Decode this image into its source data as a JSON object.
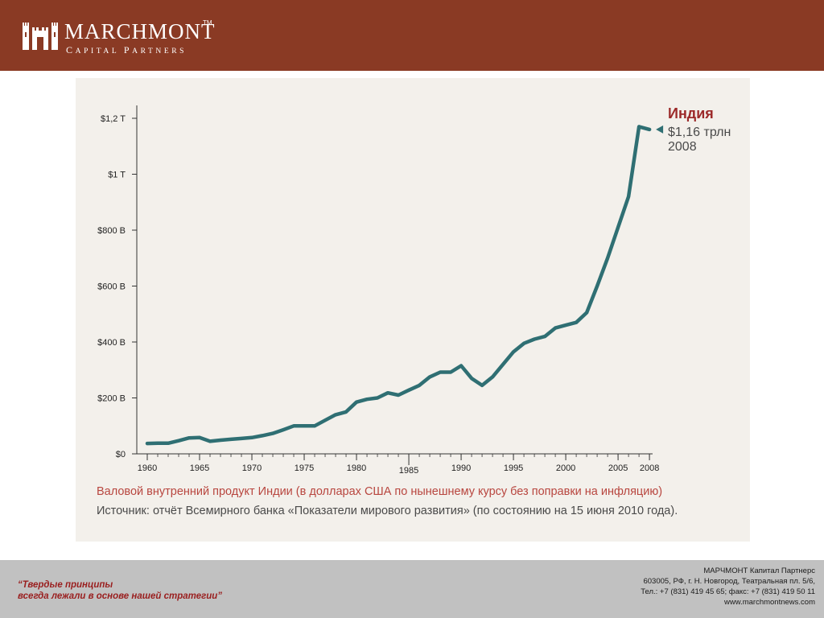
{
  "header": {
    "brand": "MARCHMONT",
    "tagline": "Capital Partners",
    "tm": "TM",
    "colors": {
      "header_bg": "#8a3a24",
      "footer_bg": "#c1c1c1"
    },
    "logo_icon": "castle-icon"
  },
  "chart_data": {
    "type": "line",
    "x_ticks": [
      "1960",
      "1965",
      "1970",
      "1975",
      "1980",
      "1985",
      "1990",
      "1995",
      "2000",
      "2005",
      "2008"
    ],
    "y_ticks": [
      "$0",
      "$200 B",
      "$400 B",
      "$600 B",
      "$800 B",
      "$1 T",
      "$1,2 T"
    ],
    "ylim": [
      0,
      1250
    ],
    "xlim": [
      1959,
      2008.3
    ],
    "grid": false,
    "series": [
      {
        "name": "Индия",
        "color": "#2f6f73",
        "x": [
          1960,
          1961,
          1962,
          1963,
          1964,
          1965,
          1966,
          1967,
          1968,
          1969,
          1970,
          1971,
          1972,
          1973,
          1974,
          1975,
          1976,
          1977,
          1978,
          1979,
          1980,
          1981,
          1982,
          1983,
          1984,
          1985,
          1986,
          1987,
          1988,
          1989,
          1990,
          1991,
          1992,
          1993,
          1994,
          1995,
          1996,
          1997,
          1998,
          1999,
          2000,
          2001,
          2002,
          2003,
          2004,
          2005,
          2006,
          2007,
          2008
        ],
        "values": [
          37,
          38,
          38,
          47,
          57,
          58,
          45,
          49,
          52,
          55,
          58,
          65,
          73,
          86,
          100,
          100,
          100,
          120,
          140,
          150,
          185,
          195,
          200,
          218,
          210,
          228,
          245,
          275,
          292,
          292,
          315,
          270,
          245,
          275,
          320,
          365,
          395,
          410,
          420,
          450,
          460,
          470,
          505,
          600,
          700,
          810,
          920,
          1170,
          1160
        ]
      }
    ],
    "annotation": {
      "label": "Индия",
      "value": "$1,16 трлн",
      "year": "2008",
      "label_color": "#9c2a2a",
      "value_color": "#4a4a4a"
    },
    "title": "Валовой внутренний продукт Индии (в долларах США по нынешнему курсу без поправки на инфляцию)",
    "source": "Источник: отчёт Всемирного банка «Показатели мирового развития» (по состоянию на 15 июня 2010 года).",
    "title_color": "#b8463f"
  },
  "footer": {
    "slogan_line1": "“Твердые принципы",
    "slogan_line2": "всегда лежали в основе нашей стратегии”",
    "company": "МАРЧМОНТ Капитал Партнерс",
    "address": "603005, РФ, г. Н. Новгород, Театральная пл. 5/6,",
    "phone": "Тел.: +7 (831) 419 45 65; факс: +7 (831) 419 50 11",
    "website": "www.marchmontnews.com",
    "slogan_color": "#9a1f1f"
  }
}
